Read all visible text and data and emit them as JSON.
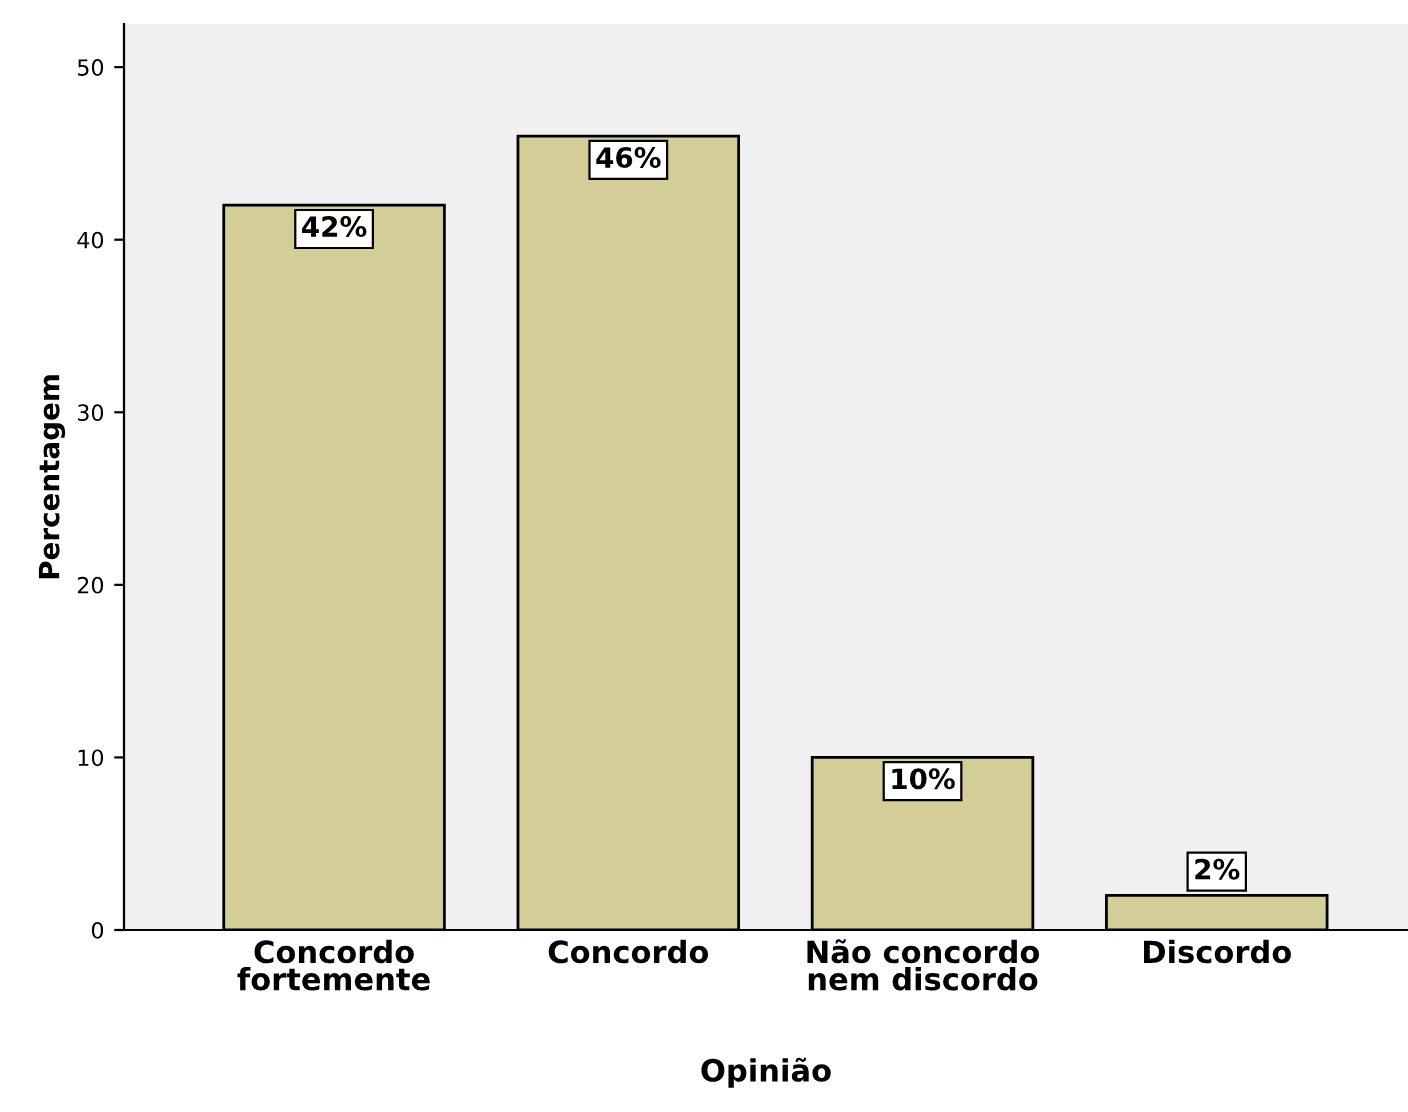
{
  "chart_data": {
    "type": "bar",
    "xlabel": "Opinião",
    "ylabel": "Percentagem",
    "categories": [
      "Concordo\nfortemente",
      "Concordo",
      "Não concordo\nnem discordo",
      "Discordo"
    ],
    "values": [
      42,
      46,
      10,
      2
    ],
    "value_labels": [
      "42%",
      "46%",
      "10%",
      "2%"
    ],
    "color": "#d3ce97",
    "ylim": [
      0,
      52.5
    ],
    "yticks": [
      0,
      10,
      20,
      30,
      40,
      50
    ],
    "grid": false
  }
}
